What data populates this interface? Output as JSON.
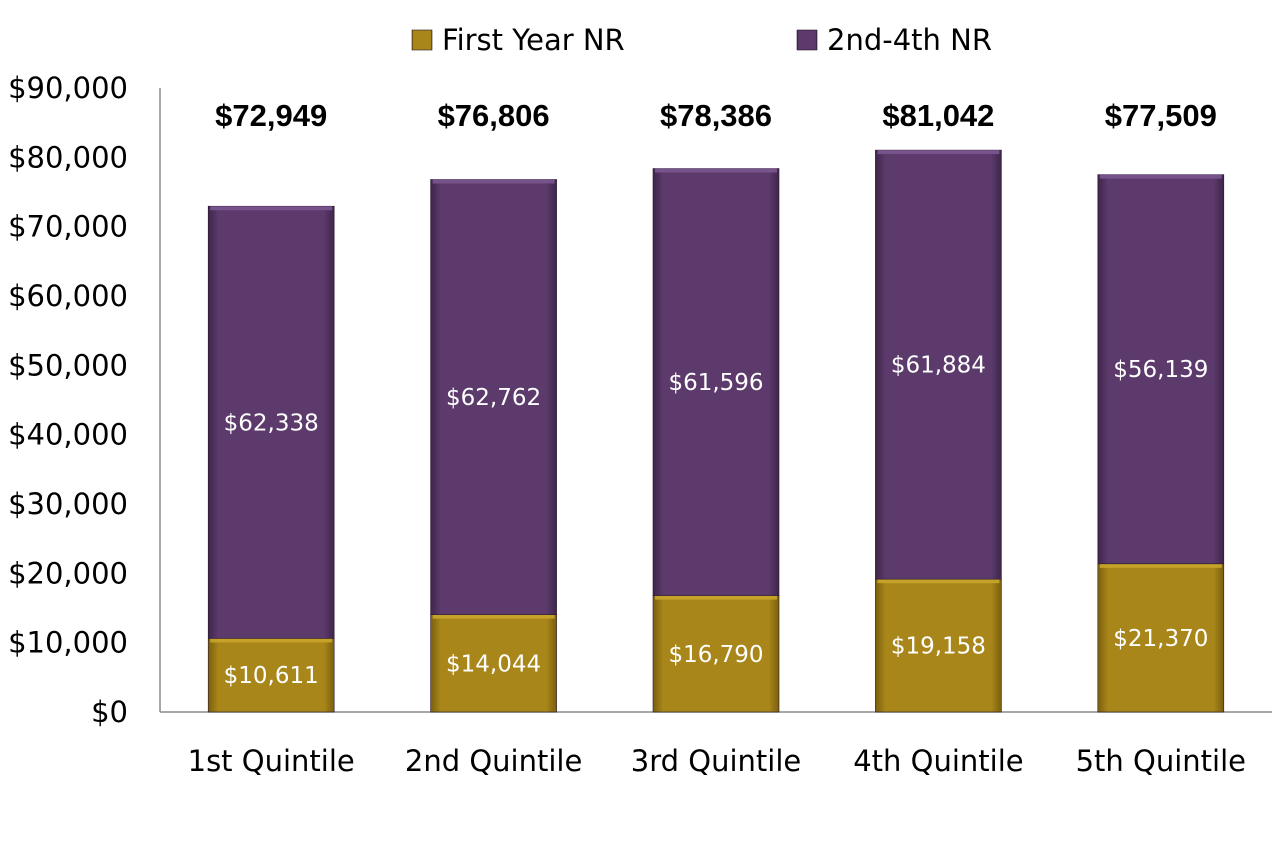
{
  "chart_data": {
    "type": "bar",
    "stacked": true,
    "categories": [
      "1st Quintile",
      "2nd Quintile",
      "3rd Quintile",
      "4th Quintile",
      "5th Quintile"
    ],
    "series": [
      {
        "name": "First Year NR",
        "values": [
          10611,
          14044,
          16790,
          19158,
          21370
        ],
        "labels": [
          "$10,611",
          "$14,044",
          "$16,790",
          "$19,158",
          "$21,370"
        ],
        "color": "#A8861A"
      },
      {
        "name": "2nd-4th NR",
        "values": [
          62338,
          62762,
          61596,
          61884,
          56139
        ],
        "labels": [
          "$62,338",
          "$62,762",
          "$61,596",
          "$61,884",
          "$56,139"
        ],
        "color": "#5C3A6C"
      }
    ],
    "totals": [
      "$72,949",
      "$76,806",
      "$78,386",
      "$81,042",
      "$77,509"
    ],
    "title": "",
    "xlabel": "",
    "ylabel": "",
    "ylim": [
      0,
      90000
    ],
    "yticks": [
      "$0",
      "$10,000",
      "$20,000",
      "$30,000",
      "$40,000",
      "$50,000",
      "$60,000",
      "$70,000",
      "$80,000",
      "$90,000"
    ],
    "ytick_values": [
      0,
      10000,
      20000,
      30000,
      40000,
      50000,
      60000,
      70000,
      80000,
      90000
    ],
    "grid": false,
    "legend_position": "top"
  }
}
